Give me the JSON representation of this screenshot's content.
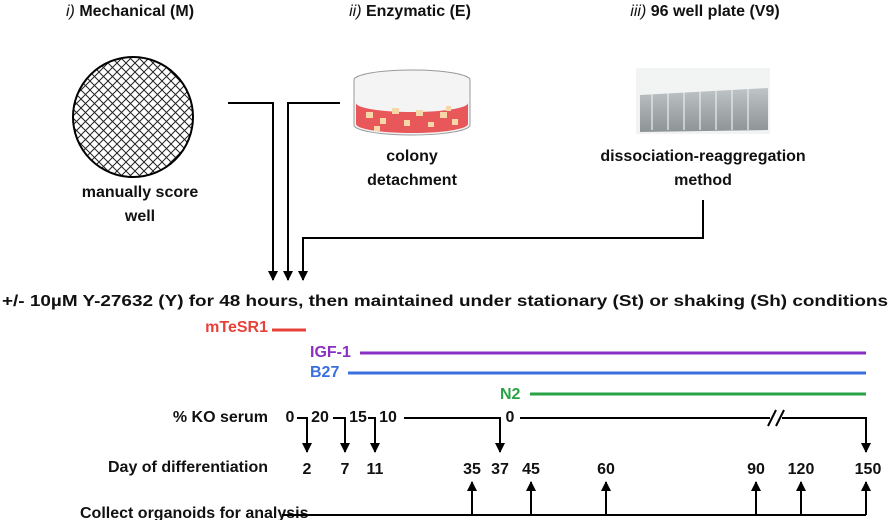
{
  "methods": [
    {
      "numeral": "i)",
      "title": "Mechanical (M)",
      "caption": [
        "manually score",
        "well"
      ]
    },
    {
      "numeral": "ii)",
      "title": "Enzymatic (E)",
      "caption": [
        "colony",
        "detachment"
      ]
    },
    {
      "numeral": "iii)",
      "title": "96 well plate (V9)",
      "caption": [
        "dissociation-reaggregation",
        "method"
      ]
    }
  ],
  "treatment": "+/- 10µM Y-27632 (Y) for 48 hours, then maintained under stationary (St) or shaking (Sh) conditions",
  "media": [
    "mTeSR1",
    "IGF-1",
    "B27",
    "N2"
  ],
  "serum": {
    "label": "% KO serum",
    "values": [
      0,
      20,
      15,
      10,
      0
    ]
  },
  "days": {
    "label": "Day of differentiation",
    "values": [
      2,
      7,
      11,
      35,
      37,
      45,
      60,
      90,
      120,
      150
    ]
  },
  "collect": "Collect organoids for analysis"
}
